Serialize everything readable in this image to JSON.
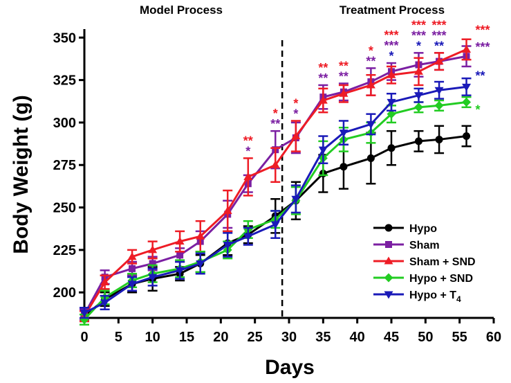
{
  "chart_data": {
    "type": "line",
    "annotations_top": [
      "Model Process",
      "Treatment Process"
    ],
    "xlabel": "Days",
    "ylabel": "Body Weight (g)",
    "xlim": [
      0,
      60
    ],
    "ylim": [
      185,
      355
    ],
    "xticks": [
      "0",
      "5",
      "10",
      "15",
      "20",
      "25",
      "30",
      "35",
      "40",
      "45",
      "50",
      "55",
      "60"
    ],
    "yticks": [
      "200",
      "225",
      "250",
      "275",
      "300",
      "325",
      "350"
    ],
    "divider_x": 29,
    "grid": false,
    "legend_position": "bottom-right",
    "x": [
      0,
      3,
      7,
      10,
      14,
      17,
      21,
      24,
      28,
      31,
      35,
      38,
      42,
      45,
      49,
      52,
      56
    ],
    "series": [
      {
        "name": "Hypo",
        "color": "#000000",
        "marker": "circle",
        "x": [
          0,
          3,
          7,
          10,
          14,
          17,
          21,
          24,
          28,
          31,
          35,
          38,
          42,
          45,
          49,
          52,
          56
        ],
        "values": [
          186,
          196,
          205,
          208,
          211,
          217,
          229,
          234,
          245,
          254,
          270,
          274,
          279,
          285,
          289,
          290,
          292
        ],
        "errors": [
          3,
          4,
          5,
          7,
          4,
          5,
          7,
          5,
          10,
          11,
          11,
          13,
          15,
          10,
          6,
          8,
          6
        ]
      },
      {
        "name": "Sham",
        "color": "#7B1FA2",
        "marker": "square",
        "x": [
          0,
          3,
          7,
          10,
          14,
          17,
          21,
          24,
          28,
          31,
          35,
          38,
          42,
          45,
          49,
          52,
          56
        ],
        "values": [
          187,
          209,
          214,
          217,
          222,
          230,
          246,
          264,
          284,
          291,
          315,
          318,
          324,
          330,
          334,
          336,
          339
        ],
        "errors": [
          3,
          4,
          4,
          4,
          4,
          6,
          8,
          5,
          11,
          9,
          7,
          5,
          8,
          5,
          7,
          5,
          6
        ]
      },
      {
        "name": "Sham + SND",
        "color": "#EE1C25",
        "marker": "triangle-up",
        "x": [
          0,
          3,
          7,
          10,
          14,
          17,
          21,
          24,
          28,
          31,
          35,
          38,
          42,
          45,
          49,
          52,
          56
        ],
        "values": [
          186,
          206,
          221,
          225,
          230,
          233,
          248,
          268,
          275,
          292,
          313,
          317,
          322,
          328,
          330,
          336,
          343
        ],
        "errors": [
          3,
          4,
          4,
          5,
          6,
          9,
          12,
          11,
          10,
          9,
          7,
          5,
          6,
          5,
          8,
          5,
          6
        ]
      },
      {
        "name": "Hypo + SND",
        "color": "#22CC22",
        "marker": "diamond",
        "x": [
          0,
          3,
          7,
          10,
          14,
          17,
          21,
          24,
          28,
          31,
          35,
          38,
          42,
          45,
          49,
          52,
          56
        ],
        "values": [
          184,
          197,
          207,
          211,
          214,
          218,
          225,
          237,
          243,
          254,
          279,
          290,
          294,
          305,
          309,
          310,
          312
        ],
        "errors": [
          3,
          4,
          4,
          5,
          5,
          6,
          5,
          5,
          5,
          8,
          10,
          7,
          6,
          5,
          3,
          3,
          3
        ]
      },
      {
        "name": "Hypo + T4",
        "name_main": "Hypo + T",
        "name_sub": "4",
        "color": "#1A1AB8",
        "marker": "triangle-down",
        "x": [
          0,
          3,
          7,
          10,
          14,
          17,
          21,
          24,
          28,
          31,
          35,
          38,
          42,
          45,
          49,
          52,
          56
        ],
        "values": [
          188,
          194,
          205,
          209,
          213,
          217,
          228,
          233,
          240,
          255,
          284,
          294,
          299,
          312,
          316,
          319,
          321
        ],
        "errors": [
          3,
          4,
          4,
          5,
          5,
          6,
          7,
          5,
          8,
          8,
          8,
          7,
          6,
          5,
          4,
          5,
          5
        ]
      }
    ],
    "significance": [
      {
        "x": 24,
        "lines": [
          {
            "text": "**",
            "color": "#EE1C25"
          },
          {
            "text": "*",
            "color": "#7B1FA2"
          }
        ]
      },
      {
        "x": 28,
        "lines": [
          {
            "text": "*",
            "color": "#EE1C25"
          },
          {
            "text": "**",
            "color": "#7B1FA2"
          }
        ]
      },
      {
        "x": 31,
        "lines": [
          {
            "text": "*",
            "color": "#EE1C25"
          },
          {
            "text": "*",
            "color": "#7B1FA2"
          }
        ]
      },
      {
        "x": 35,
        "lines": [
          {
            "text": "**",
            "color": "#EE1C25"
          },
          {
            "text": "**",
            "color": "#7B1FA2"
          }
        ]
      },
      {
        "x": 38,
        "lines": [
          {
            "text": "**",
            "color": "#EE1C25"
          },
          {
            "text": "**",
            "color": "#7B1FA2"
          }
        ]
      },
      {
        "x": 42,
        "lines": [
          {
            "text": "*",
            "color": "#EE1C25"
          },
          {
            "text": "**",
            "color": "#7B1FA2"
          }
        ]
      },
      {
        "x": 45,
        "lines": [
          {
            "text": "***",
            "color": "#EE1C25"
          },
          {
            "text": "***",
            "color": "#7B1FA2"
          },
          {
            "text": "*",
            "color": "#1A1AB8"
          }
        ]
      },
      {
        "x": 49,
        "lines": [
          {
            "text": "***",
            "color": "#EE1C25"
          },
          {
            "text": "***",
            "color": "#7B1FA2"
          },
          {
            "text": "*",
            "color": "#1A1AB8"
          }
        ]
      },
      {
        "x": 52,
        "lines": [
          {
            "text": "***",
            "color": "#EE1C25"
          },
          {
            "text": "***",
            "color": "#7B1FA2"
          },
          {
            "text": "**",
            "color": "#1A1AB8"
          }
        ]
      },
      {
        "x": 56,
        "side": true,
        "lines": [
          {
            "text": "***",
            "color": "#EE1C25"
          },
          {
            "text": "***",
            "color": "#7B1FA2"
          },
          {
            "text": "**",
            "color": "#1A1AB8"
          },
          {
            "text": "*",
            "color": "#22CC22"
          }
        ]
      }
    ]
  }
}
